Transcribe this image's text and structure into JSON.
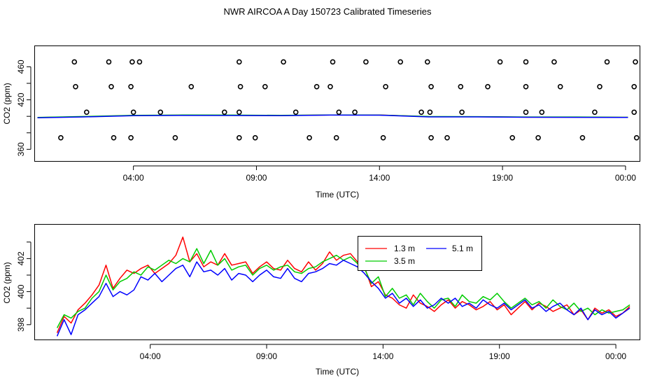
{
  "page": {
    "title": "NWR AIRCOA A  Day 150723  Calibrated Timeseries"
  },
  "chart_data": [
    {
      "type": "scatter",
      "xlabel": "Time (UTC)",
      "ylabel": "CO2 (ppm)",
      "x_tick_labels": [
        "04:00",
        "09:00",
        "14:00",
        "19:00",
        "00:00"
      ],
      "x_tick_hours": [
        4,
        9,
        14,
        19,
        24
      ],
      "xlim": [
        0,
        24.6
      ],
      "y_ticks": [
        360,
        380,
        400,
        420,
        440,
        460
      ],
      "y_tick_labels": [
        "360",
        "420",
        "460"
      ],
      "y_tick_label_values": [
        360,
        420,
        460
      ],
      "ylim": [
        345,
        485
      ],
      "calibration_points": {
        "x": [
          1.05,
          3.2,
          3.9,
          5.7,
          8.3,
          8.95,
          11.15,
          12.25,
          14.15,
          16.1,
          16.75,
          19.4,
          20.45,
          22.25,
          24.45,
          2.1,
          4.0,
          5.1,
          7.7,
          8.3,
          10.6,
          12.35,
          13.0,
          15.7,
          16.05,
          17.35,
          19.95,
          20.6,
          22.75,
          24.35,
          1.65,
          3.1,
          3.9,
          6.35,
          8.35,
          9.35,
          11.45,
          12.0,
          14.25,
          16.1,
          17.3,
          18.4,
          19.95,
          21.35,
          22.95,
          24.35,
          1.6,
          3.0,
          3.95,
          4.25,
          8.3,
          10.1,
          12.1,
          13.45,
          14.85,
          15.95,
          18.9,
          19.95,
          21.1,
          23.25,
          24.4
        ],
        "y": [
          374,
          374,
          374,
          374,
          374,
          374,
          374,
          374,
          374,
          374,
          374,
          374,
          374,
          374,
          374,
          405,
          405,
          405,
          405,
          405,
          405,
          405,
          405,
          405,
          405,
          405,
          405,
          405,
          405,
          405,
          436,
          436,
          436,
          436,
          436,
          436,
          436,
          436,
          436,
          436,
          436,
          436,
          436,
          436,
          436,
          436,
          466,
          466,
          466,
          466,
          466,
          466,
          466,
          466,
          466,
          466,
          466,
          466,
          466,
          466,
          466
        ]
      },
      "baseline_series": [
        {
          "name": "1.3 m",
          "color": "#ff0000",
          "x": [
            0.1,
            2,
            4,
            6,
            8,
            10,
            12,
            14,
            16,
            18,
            20,
            22,
            24.1
          ],
          "values": [
            398.5,
            399.5,
            401,
            401.3,
            401.2,
            401,
            401.6,
            401.6,
            399.5,
            399.5,
            399,
            399,
            398.8
          ]
        },
        {
          "name": "3.5 m",
          "color": "#00cc00",
          "x": [
            0.1,
            2,
            4,
            6,
            8,
            10,
            12,
            14,
            16,
            18,
            20,
            22,
            24.1
          ],
          "values": [
            398.6,
            399.8,
            401.2,
            401.6,
            401.5,
            401.2,
            401.7,
            401.5,
            399.8,
            399.6,
            399.2,
            399.2,
            398.9
          ]
        },
        {
          "name": "5.1 m",
          "color": "#0000ff",
          "x": [
            0.1,
            2,
            4,
            6,
            8,
            10,
            12,
            14,
            16,
            18,
            20,
            22,
            24.1
          ],
          "values": [
            398.2,
            399.3,
            400.8,
            401.1,
            401,
            400.8,
            401.5,
            401.4,
            399.3,
            399.3,
            398.9,
            398.8,
            398.6
          ]
        }
      ]
    },
    {
      "type": "line",
      "xlabel": "Time (UTC)",
      "ylabel": "CO2 (ppm)",
      "x_tick_labels": [
        "04:00",
        "09:00",
        "14:00",
        "19:00",
        "00:00"
      ],
      "x_tick_hours": [
        4,
        9,
        14,
        19,
        24
      ],
      "xlim": [
        -0.95,
        25.05
      ],
      "y_ticks": [
        398,
        399,
        400,
        401,
        402,
        403
      ],
      "y_tick_labels": [
        "398",
        "400",
        "402"
      ],
      "y_tick_label_values": [
        398,
        400,
        402
      ],
      "ylim": [
        397.06,
        404.05
      ],
      "legend": {
        "position": "top-right",
        "entries": [
          "1.3 m",
          "3.5 m",
          "5.1 m"
        ]
      },
      "series": [
        {
          "name": "1.3 m",
          "color": "#ff0000",
          "x": [
            0,
            0.3,
            0.6,
            0.9,
            1.2,
            1.5,
            1.8,
            2.1,
            2.4,
            2.7,
            3.0,
            3.3,
            3.6,
            3.9,
            4.2,
            4.5,
            4.8,
            5.1,
            5.4,
            5.7,
            6.0,
            6.3,
            6.6,
            6.9,
            7.2,
            7.5,
            7.8,
            8.1,
            8.4,
            8.7,
            9.0,
            9.3,
            9.6,
            9.9,
            10.2,
            10.5,
            10.8,
            11.1,
            11.4,
            11.7,
            12.0,
            12.3,
            12.6,
            12.9,
            13.2,
            13.5,
            13.8,
            14.1,
            14.4,
            14.7,
            15.0,
            15.3,
            15.6,
            15.9,
            16.2,
            16.5,
            16.8,
            17.1,
            17.4,
            17.7,
            18.0,
            18.3,
            18.6,
            18.9,
            19.2,
            19.5,
            19.8,
            20.1,
            20.4,
            20.7,
            21.0,
            21.3,
            21.6,
            21.9,
            22.2,
            22.5,
            22.8,
            23.1,
            23.4,
            23.7,
            24.0,
            24.3,
            24.6
          ],
          "values": [
            397.5,
            398.5,
            398.1,
            398.9,
            399.3,
            399.8,
            400.4,
            401.6,
            400.2,
            400.8,
            401.3,
            401.1,
            401.4,
            401.6,
            401.1,
            401.4,
            401.7,
            402.2,
            403.3,
            401.8,
            402.3,
            401.5,
            401.8,
            401.6,
            402.3,
            401.6,
            401.7,
            401.8,
            401.1,
            401.5,
            401.8,
            401.4,
            401.3,
            401.9,
            401.4,
            401.2,
            401.8,
            401.3,
            401.7,
            402.4,
            401.9,
            402.2,
            402.3,
            401.8,
            401.5,
            400.3,
            400.6,
            399.8,
            399.6,
            399.2,
            399.0,
            399.8,
            399.3,
            399.1,
            398.8,
            399.2,
            399.5,
            399.0,
            399.4,
            399.2,
            398.9,
            399.1,
            399.4,
            398.9,
            399.2,
            398.6,
            399.0,
            399.4,
            398.9,
            399.3,
            399.1,
            398.8,
            399.0,
            399.2,
            398.6,
            398.9,
            398.3,
            399.0,
            398.7,
            398.9,
            398.5,
            398.7,
            399.1
          ]
        },
        {
          "name": "3.5 m",
          "color": "#00cc00",
          "x": [
            0,
            0.3,
            0.6,
            0.9,
            1.2,
            1.5,
            1.8,
            2.1,
            2.4,
            2.7,
            3.0,
            3.3,
            3.6,
            3.9,
            4.2,
            4.5,
            4.8,
            5.1,
            5.4,
            5.7,
            6.0,
            6.3,
            6.6,
            6.9,
            7.2,
            7.5,
            7.8,
            8.1,
            8.4,
            8.7,
            9.0,
            9.3,
            9.6,
            9.9,
            10.2,
            10.5,
            10.8,
            11.1,
            11.4,
            11.7,
            12.0,
            12.3,
            12.6,
            12.9,
            13.2,
            13.5,
            13.8,
            14.1,
            14.4,
            14.7,
            15.0,
            15.3,
            15.6,
            15.9,
            16.2,
            16.5,
            16.8,
            17.1,
            17.4,
            17.7,
            18.0,
            18.3,
            18.6,
            18.9,
            19.2,
            19.5,
            19.8,
            20.1,
            20.4,
            20.7,
            21.0,
            21.3,
            21.6,
            21.9,
            22.2,
            22.5,
            22.8,
            23.1,
            23.4,
            23.7,
            24.0,
            24.3,
            24.6
          ],
          "values": [
            397.8,
            398.6,
            398.4,
            398.8,
            399.0,
            399.6,
            400.0,
            401.0,
            400.1,
            400.6,
            400.8,
            401.2,
            401.0,
            401.5,
            401.3,
            401.6,
            401.9,
            401.7,
            402.0,
            401.8,
            402.6,
            401.7,
            402.5,
            401.6,
            402.0,
            401.3,
            401.5,
            401.6,
            401.0,
            401.4,
            401.6,
            401.3,
            401.5,
            401.6,
            401.2,
            401.1,
            401.4,
            401.5,
            401.8,
            402.0,
            402.2,
            401.9,
            402.1,
            401.7,
            401.4,
            400.5,
            400.9,
            399.7,
            400.2,
            399.6,
            399.8,
            399.2,
            399.9,
            399.4,
            399.0,
            399.5,
            399.6,
            399.1,
            399.8,
            399.4,
            399.3,
            399.7,
            399.5,
            399.9,
            399.4,
            399.0,
            399.3,
            399.6,
            399.2,
            399.4,
            399.0,
            399.5,
            399.1,
            398.9,
            399.3,
            398.8,
            399.0,
            398.6,
            398.9,
            398.7,
            398.8,
            398.9,
            399.2
          ]
        },
        {
          "name": "5.1 m",
          "color": "#0000ff",
          "x": [
            0,
            0.3,
            0.6,
            0.9,
            1.2,
            1.5,
            1.8,
            2.1,
            2.4,
            2.7,
            3.0,
            3.3,
            3.6,
            3.9,
            4.2,
            4.5,
            4.8,
            5.1,
            5.4,
            5.7,
            6.0,
            6.3,
            6.6,
            6.9,
            7.2,
            7.5,
            7.8,
            8.1,
            8.4,
            8.7,
            9.0,
            9.3,
            9.6,
            9.9,
            10.2,
            10.5,
            10.8,
            11.1,
            11.4,
            11.7,
            12.0,
            12.3,
            12.6,
            12.9,
            13.2,
            13.5,
            13.8,
            14.1,
            14.4,
            14.7,
            15.0,
            15.3,
            15.6,
            15.9,
            16.2,
            16.5,
            16.8,
            17.1,
            17.4,
            17.7,
            18.0,
            18.3,
            18.6,
            18.9,
            19.2,
            19.5,
            19.8,
            20.1,
            20.4,
            20.7,
            21.0,
            21.3,
            21.6,
            21.9,
            22.2,
            22.5,
            22.8,
            23.1,
            23.4,
            23.7,
            24.0,
            24.3,
            24.6
          ],
          "values": [
            397.3,
            398.3,
            397.4,
            398.6,
            398.9,
            399.3,
            399.7,
            400.5,
            399.7,
            400.0,
            399.8,
            400.1,
            400.9,
            400.7,
            401.1,
            400.6,
            401.0,
            401.4,
            401.6,
            400.9,
            401.8,
            401.2,
            401.3,
            401.0,
            401.4,
            400.7,
            401.1,
            401.0,
            400.6,
            401.0,
            401.3,
            400.9,
            400.8,
            401.4,
            400.8,
            400.6,
            401.1,
            401.2,
            401.4,
            401.7,
            401.6,
            401.9,
            401.7,
            401.5,
            401.1,
            400.6,
            400.2,
            399.6,
            399.9,
            399.3,
            399.6,
            399.1,
            399.5,
            399.0,
            399.2,
            399.6,
            399.3,
            399.6,
            399.1,
            399.3,
            399.0,
            399.5,
            399.2,
            399.0,
            399.3,
            398.9,
            399.2,
            399.5,
            399.0,
            399.2,
            398.8,
            399.1,
            399.3,
            398.9,
            398.6,
            399.0,
            398.3,
            398.9,
            398.6,
            398.8,
            398.4,
            398.7,
            399.0
          ]
        }
      ]
    }
  ]
}
